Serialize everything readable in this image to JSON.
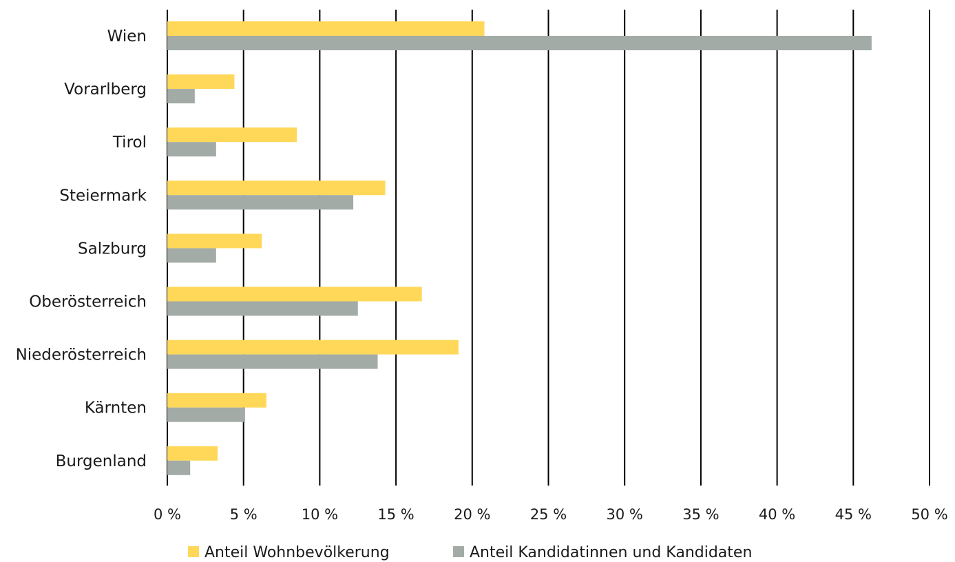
{
  "chart_data": {
    "type": "bar",
    "orientation": "horizontal",
    "categories": [
      "Wien",
      "Vorarlberg",
      "Tirol",
      "Steiermark",
      "Salzburg",
      "Oberösterreich",
      "Niederösterreich",
      "Kärnten",
      "Burgenland"
    ],
    "series": [
      {
        "name": "Anteil Wohnbevölkerung",
        "color": "#ffd85a",
        "values": [
          20.8,
          4.4,
          8.5,
          14.3,
          6.2,
          16.7,
          19.1,
          6.5,
          3.3
        ]
      },
      {
        "name": "Anteil Kandidatinnen und Kandidaten",
        "color": "#a3aba6",
        "values": [
          46.2,
          1.8,
          3.2,
          12.2,
          3.2,
          12.5,
          13.8,
          5.1,
          1.5
        ]
      }
    ],
    "xlim": [
      0,
      50
    ],
    "x_ticks": [
      0,
      5,
      10,
      15,
      20,
      25,
      30,
      35,
      40,
      45,
      50
    ],
    "x_tick_labels": [
      "0 %",
      "5 %",
      "10 %",
      "15 %",
      "20 %",
      "25 %",
      "30 %",
      "35 %",
      "40 %",
      "45 %",
      "50 %"
    ],
    "grid": true,
    "gridline_color": "#000000",
    "legend_position": "bottom",
    "title": "",
    "xlabel": "",
    "ylabel": ""
  }
}
